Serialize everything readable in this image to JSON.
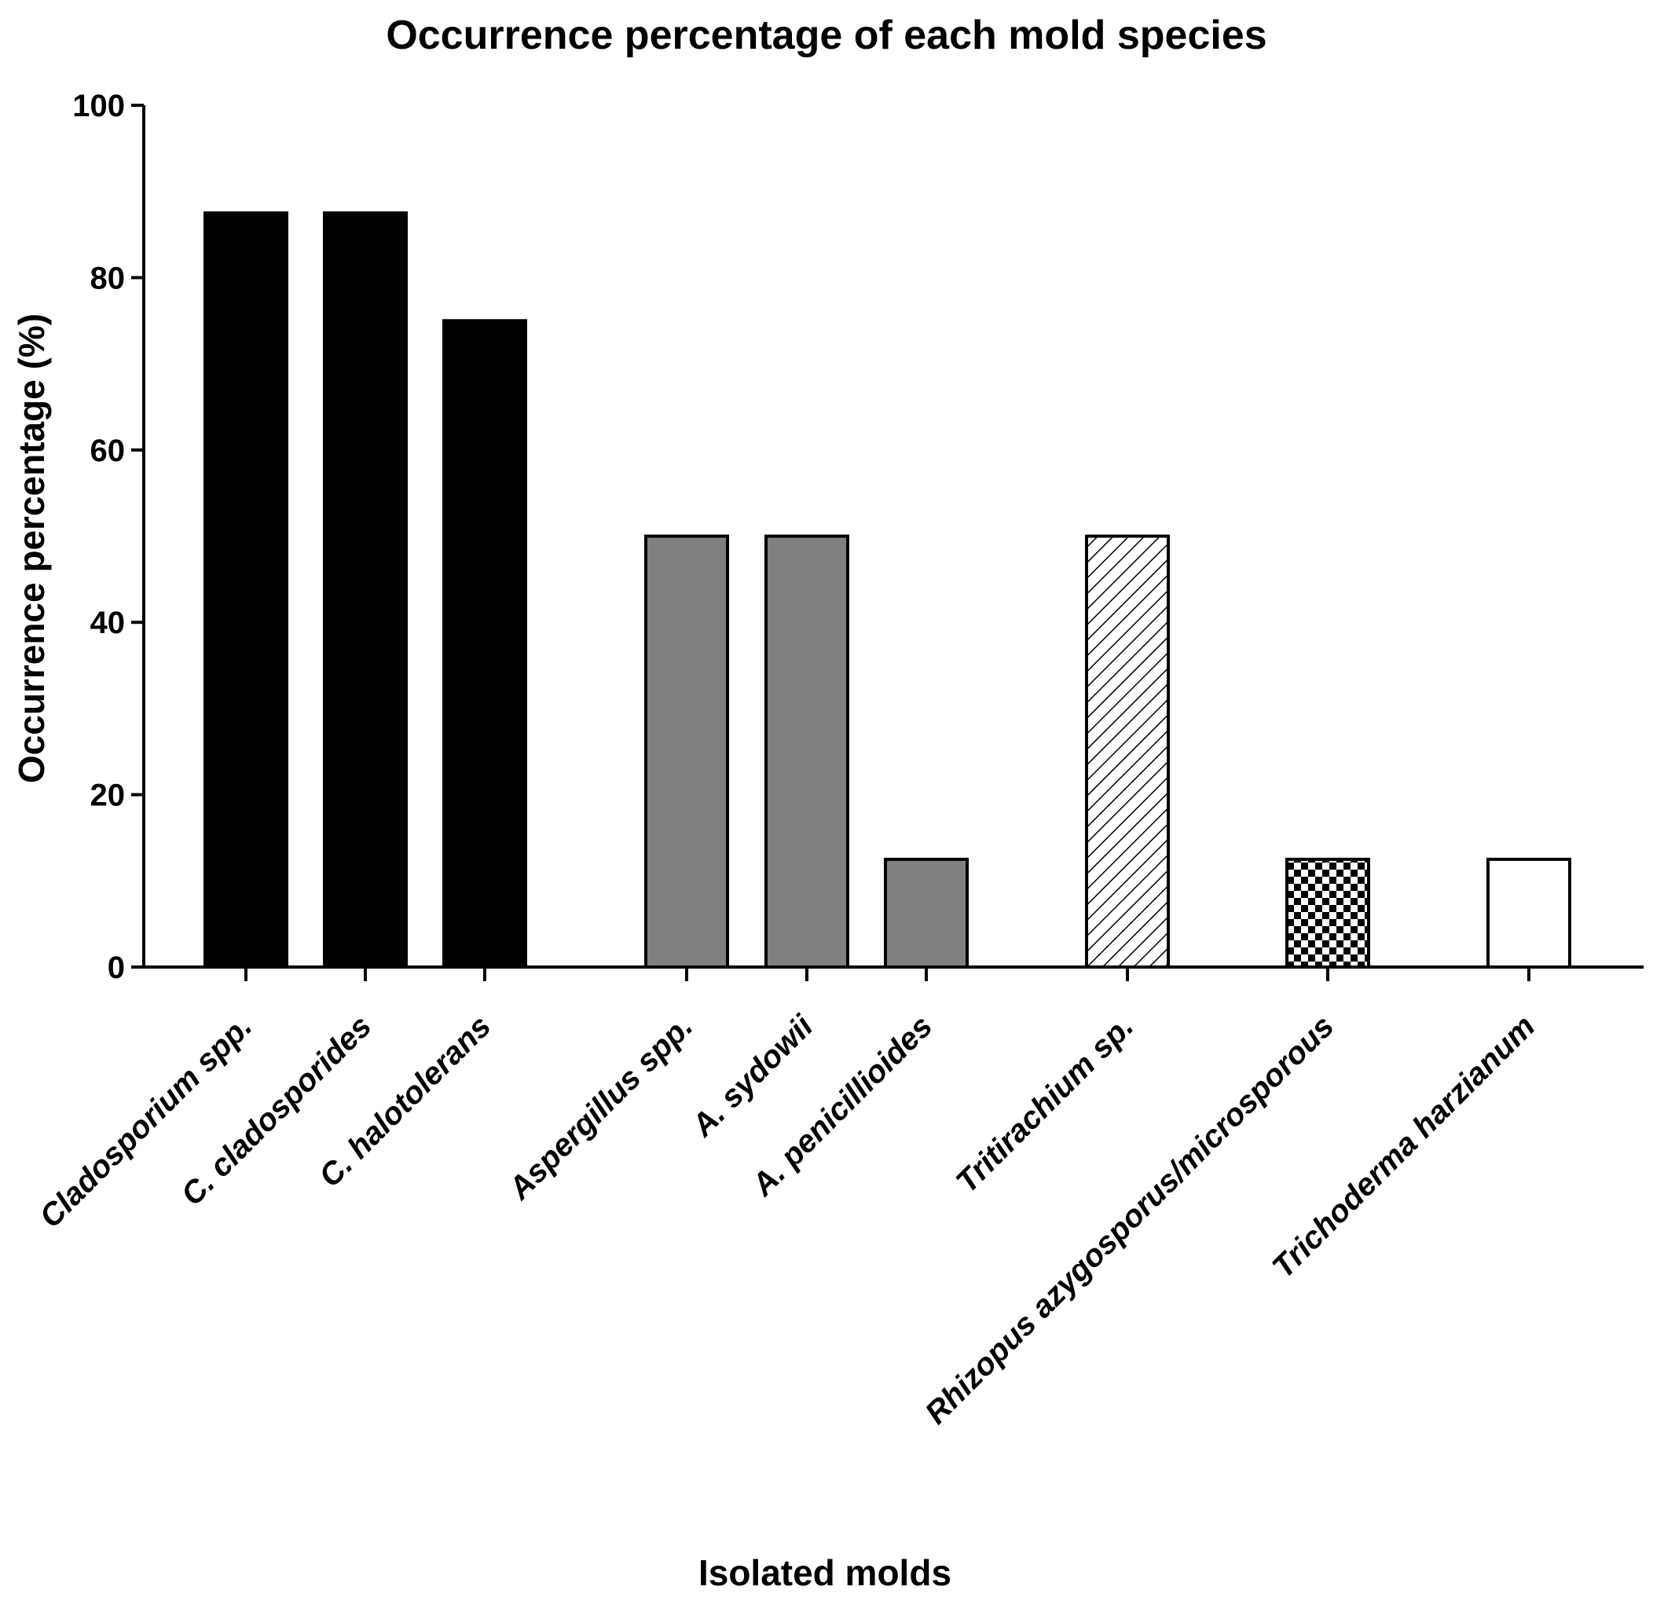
{
  "chart_data": {
    "type": "bar",
    "title": "Occurrence percentage of each mold species",
    "xlabel": "Isolated molds",
    "ylabel": "Occurrence percentage (%)",
    "ylim": [
      0,
      100
    ],
    "yticks": [
      0,
      20,
      40,
      60,
      80,
      100
    ],
    "grid": false,
    "legend": "none",
    "categories": [
      "Cladosporium spp.",
      "C. cladosporides",
      "C. halotolerans",
      "Aspergillus spp.",
      "A. sydowii",
      "A. penicillioides",
      "Tritirachium sp.",
      "Rhizopus azygosporus/microsporous",
      "Trichoderma harzianum"
    ],
    "values": [
      87.5,
      87.5,
      75,
      50,
      50,
      12.5,
      50,
      12.5,
      12.5
    ],
    "bar_fills": [
      "solid-black",
      "solid-black",
      "solid-black",
      "solid-gray",
      "solid-gray",
      "solid-gray",
      "diagonal-hatch",
      "checkerboard",
      "white"
    ],
    "colors": {
      "black": "#000000",
      "gray": "#808080",
      "white": "#ffffff"
    }
  }
}
